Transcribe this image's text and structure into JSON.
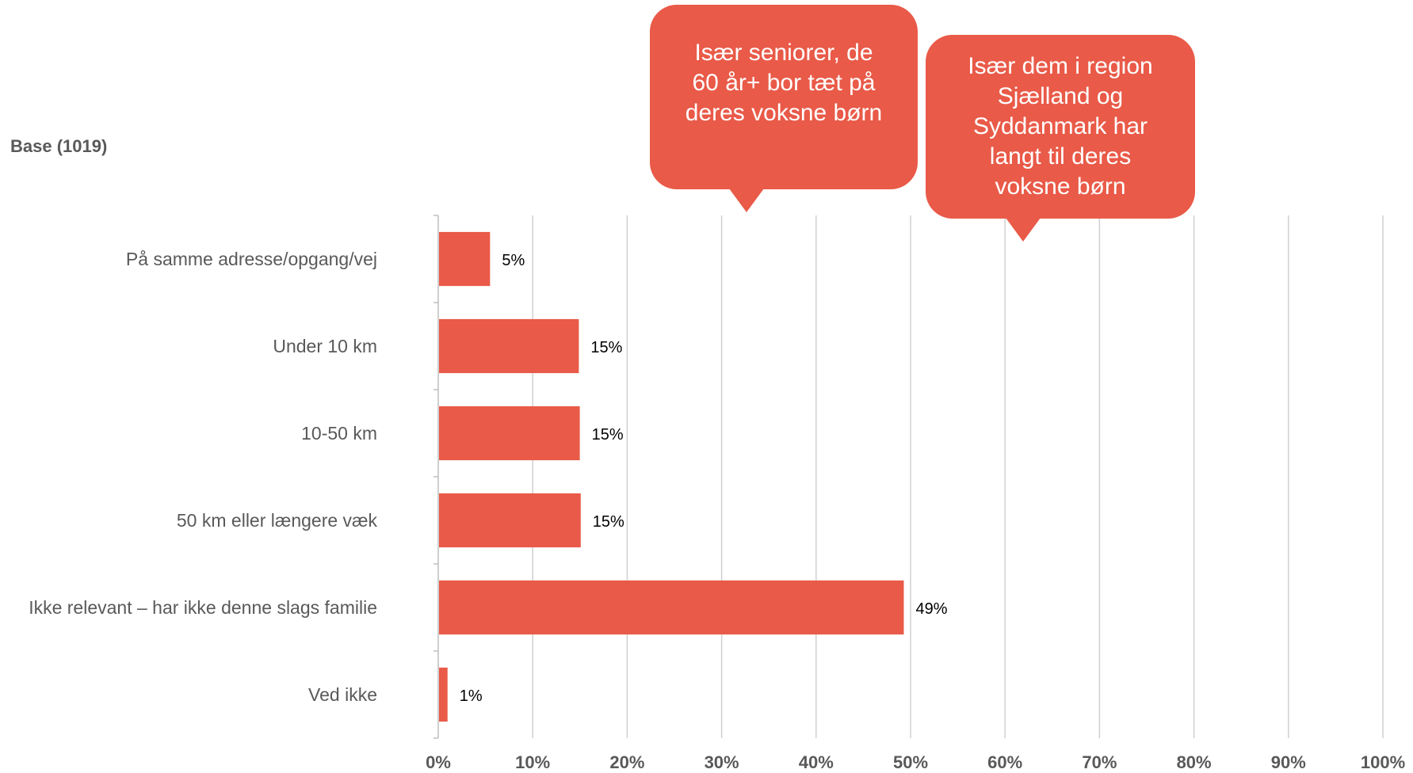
{
  "base_label": "Base (1019)",
  "callouts": [
    {
      "text": "Især seniorer, de\n60 år+ bor tæt på\nderes voksne børn"
    },
    {
      "text": "Især dem i region\nSjælland og\nSyddanmark har\nlangt til deres\nvoksne børn"
    }
  ],
  "colors": {
    "bar": "#e95a48",
    "callout": "#e95a48",
    "grid": "#d0d0d0",
    "axis_text": "#595959"
  },
  "chart_data": {
    "type": "bar",
    "orientation": "horizontal",
    "categories": [
      "På samme adresse/opgang/vej",
      "Under 10 km",
      "10-50 km",
      "50 km eller længere væk",
      "Ikke relevant – har ikke denne slags familie",
      "Ved ikke"
    ],
    "values": [
      5.4,
      14.8,
      14.9,
      15.0,
      49.2,
      0.9
    ],
    "data_labels": [
      "5%",
      "15%",
      "15%",
      "15%",
      "49%",
      "1%"
    ],
    "xlim": [
      0,
      100
    ],
    "xticks": [
      0,
      10,
      20,
      30,
      40,
      50,
      60,
      70,
      80,
      90,
      100
    ],
    "xtick_labels": [
      "0%",
      "10%",
      "20%",
      "30%",
      "40%",
      "50%",
      "60%",
      "70%",
      "80%",
      "90%",
      "100%"
    ],
    "grid": true,
    "legend": "none"
  }
}
